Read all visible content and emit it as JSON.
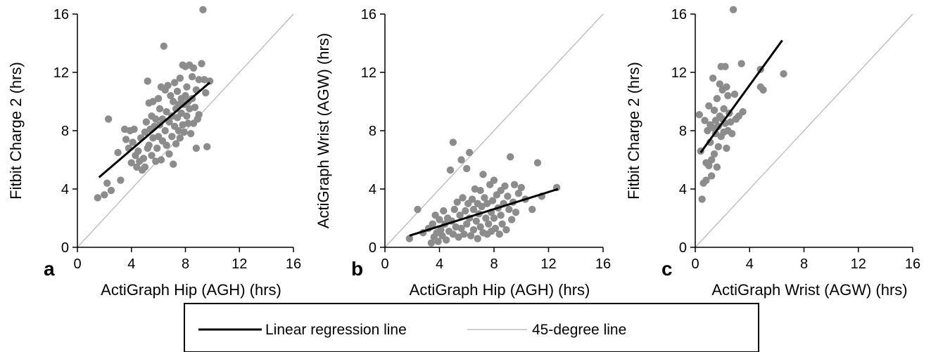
{
  "legend": {
    "items": [
      {
        "label": "Linear regression line",
        "color": "#000000"
      },
      {
        "label": "45-degree line",
        "color": "#bdbdbd"
      }
    ]
  },
  "colors": {
    "points": "#8c8c8c",
    "regression": "#000000",
    "identity": "#bdbdbd"
  },
  "chart_data": [
    {
      "type": "scatter",
      "panel_label": "a",
      "xlabel": "ActiGraph Hip (AGH) (hrs)",
      "ylabel": "Fitbit Charge 2 (hrs)",
      "xlim": [
        0,
        16
      ],
      "ylim": [
        0,
        16
      ],
      "xticks": [
        0,
        4,
        8,
        12,
        16
      ],
      "yticks": [
        0,
        4,
        8,
        12,
        16
      ],
      "grid": false,
      "regression": [
        [
          1.6,
          4.8
        ],
        [
          9.8,
          11.3
        ]
      ],
      "identity": [
        [
          0,
          0
        ],
        [
          16,
          16
        ]
      ],
      "points": [
        [
          1.5,
          3.4
        ],
        [
          2.0,
          3.6
        ],
        [
          2.2,
          4.4
        ],
        [
          2.5,
          3.9
        ],
        [
          2.3,
          8.8
        ],
        [
          3.0,
          6.5
        ],
        [
          3.2,
          4.6
        ],
        [
          3.5,
          8.1
        ],
        [
          3.6,
          7.4
        ],
        [
          3.8,
          6.8
        ],
        [
          3.9,
          8.0
        ],
        [
          4.0,
          5.8
        ],
        [
          4.1,
          7.2
        ],
        [
          4.2,
          8.1
        ],
        [
          4.3,
          6.3
        ],
        [
          4.4,
          5.5
        ],
        [
          4.5,
          6.6
        ],
        [
          4.6,
          5.9
        ],
        [
          4.7,
          7.5
        ],
        [
          4.8,
          5.3
        ],
        [
          4.9,
          6.1
        ],
        [
          5.0,
          7.9
        ],
        [
          5.0,
          5.5
        ],
        [
          5.1,
          8.6
        ],
        [
          5.2,
          6.8
        ],
        [
          5.2,
          11.4
        ],
        [
          5.3,
          9.9
        ],
        [
          5.3,
          7.0
        ],
        [
          5.4,
          8.1
        ],
        [
          5.5,
          6.3
        ],
        [
          5.5,
          9.0
        ],
        [
          5.6,
          7.5
        ],
        [
          5.6,
          10.0
        ],
        [
          5.7,
          8.3
        ],
        [
          5.8,
          5.9
        ],
        [
          5.8,
          8.8
        ],
        [
          5.9,
          6.8
        ],
        [
          6.0,
          7.6
        ],
        [
          6.0,
          10.2
        ],
        [
          6.1,
          8.4
        ],
        [
          6.1,
          9.5
        ],
        [
          6.2,
          6.0
        ],
        [
          6.2,
          11.0
        ],
        [
          6.3,
          7.3
        ],
        [
          6.3,
          8.8
        ],
        [
          6.4,
          13.8
        ],
        [
          6.5,
          10.8
        ],
        [
          6.5,
          8.0
        ],
        [
          6.6,
          7.0
        ],
        [
          6.6,
          9.3
        ],
        [
          6.7,
          11.1
        ],
        [
          6.8,
          8.6
        ],
        [
          6.8,
          6.4
        ],
        [
          6.9,
          10.4
        ],
        [
          7.0,
          9.0
        ],
        [
          7.0,
          7.6
        ],
        [
          7.1,
          5.7
        ],
        [
          7.1,
          10.0
        ],
        [
          7.2,
          8.3
        ],
        [
          7.2,
          11.3
        ],
        [
          7.3,
          9.5
        ],
        [
          7.3,
          7.1
        ],
        [
          7.4,
          8.9
        ],
        [
          7.4,
          10.7
        ],
        [
          7.5,
          9.8
        ],
        [
          7.5,
          8.0
        ],
        [
          7.6,
          7.5
        ],
        [
          7.6,
          11.6
        ],
        [
          7.7,
          9.2
        ],
        [
          7.7,
          10.2
        ],
        [
          7.8,
          8.4
        ],
        [
          7.8,
          12.5
        ],
        [
          7.9,
          9.8
        ],
        [
          7.9,
          7.9
        ],
        [
          8.0,
          10.4
        ],
        [
          8.0,
          12.4
        ],
        [
          8.1,
          9.0
        ],
        [
          8.1,
          11.0
        ],
        [
          8.2,
          8.5
        ],
        [
          8.2,
          10.0
        ],
        [
          8.3,
          12.5
        ],
        [
          8.3,
          9.5
        ],
        [
          8.4,
          7.8
        ],
        [
          8.5,
          10.2
        ],
        [
          8.5,
          11.7
        ],
        [
          8.6,
          8.5
        ],
        [
          8.6,
          12.3
        ],
        [
          8.7,
          9.6
        ],
        [
          8.8,
          10.8
        ],
        [
          8.8,
          6.8
        ],
        [
          8.9,
          8.8
        ],
        [
          9.0,
          11.5
        ],
        [
          9.0,
          9.1
        ],
        [
          9.2,
          12.6
        ],
        [
          9.3,
          16.3
        ],
        [
          9.4,
          11.5
        ],
        [
          9.5,
          10.6
        ],
        [
          9.6,
          6.9
        ],
        [
          9.8,
          11.4
        ]
      ]
    },
    {
      "type": "scatter",
      "panel_label": "b",
      "xlabel": "ActiGraph Hip (AGH) (hrs)",
      "ylabel": "ActiGraph Wrist (AGW) (hrs)",
      "xlim": [
        0,
        16
      ],
      "ylim": [
        0,
        16
      ],
      "xticks": [
        0,
        4,
        8,
        12,
        16
      ],
      "yticks": [
        0,
        4,
        8,
        12,
        16
      ],
      "grid": false,
      "regression": [
        [
          1.8,
          0.8
        ],
        [
          12.7,
          4.0
        ]
      ],
      "identity": [
        [
          0,
          0
        ],
        [
          16,
          16
        ]
      ],
      "points": [
        [
          1.8,
          0.6
        ],
        [
          2.4,
          2.6
        ],
        [
          2.8,
          1.0
        ],
        [
          3.2,
          1.3
        ],
        [
          3.4,
          0.3
        ],
        [
          3.5,
          1.6
        ],
        [
          3.6,
          0.7
        ],
        [
          3.7,
          2.2
        ],
        [
          3.8,
          1.0
        ],
        [
          3.9,
          0.4
        ],
        [
          4.0,
          1.9
        ],
        [
          4.1,
          1.2
        ],
        [
          4.2,
          0.8
        ],
        [
          4.3,
          2.5
        ],
        [
          4.4,
          1.6
        ],
        [
          4.5,
          0.5
        ],
        [
          4.6,
          2.0
        ],
        [
          4.7,
          1.1
        ],
        [
          4.8,
          5.3
        ],
        [
          4.9,
          1.8
        ],
        [
          5.0,
          7.2
        ],
        [
          5.0,
          0.9
        ],
        [
          5.1,
          2.6
        ],
        [
          5.2,
          1.4
        ],
        [
          5.3,
          3.1
        ],
        [
          5.4,
          0.7
        ],
        [
          5.5,
          2.2
        ],
        [
          5.6,
          1.3
        ],
        [
          5.6,
          6.0
        ],
        [
          5.7,
          3.4
        ],
        [
          5.8,
          0.9
        ],
        [
          5.9,
          2.5
        ],
        [
          6.0,
          5.4
        ],
        [
          6.0,
          1.6
        ],
        [
          6.1,
          3.0
        ],
        [
          6.2,
          6.5
        ],
        [
          6.2,
          2.0
        ],
        [
          6.3,
          0.8
        ],
        [
          6.4,
          3.3
        ],
        [
          6.5,
          1.2
        ],
        [
          6.5,
          2.6
        ],
        [
          6.6,
          4.0
        ],
        [
          6.7,
          1.8
        ],
        [
          6.8,
          3.0
        ],
        [
          6.8,
          0.6
        ],
        [
          6.9,
          2.3
        ],
        [
          7.0,
          3.9
        ],
        [
          7.0,
          1.4
        ],
        [
          7.1,
          2.8
        ],
        [
          7.2,
          5.0
        ],
        [
          7.2,
          1.0
        ],
        [
          7.3,
          3.4
        ],
        [
          7.4,
          2.0
        ],
        [
          7.5,
          0.9
        ],
        [
          7.5,
          3.0
        ],
        [
          7.6,
          1.6
        ],
        [
          7.7,
          4.3
        ],
        [
          7.8,
          2.4
        ],
        [
          7.8,
          1.1
        ],
        [
          7.9,
          3.2
        ],
        [
          8.0,
          4.6
        ],
        [
          8.0,
          2.0
        ],
        [
          8.1,
          1.3
        ],
        [
          8.2,
          3.6
        ],
        [
          8.3,
          2.7
        ],
        [
          8.4,
          0.9
        ],
        [
          8.5,
          3.9
        ],
        [
          8.5,
          2.2
        ],
        [
          8.6,
          1.6
        ],
        [
          8.7,
          3.0
        ],
        [
          8.8,
          4.2
        ],
        [
          8.9,
          1.2
        ],
        [
          9.0,
          3.5
        ],
        [
          9.1,
          2.6
        ],
        [
          9.2,
          6.2
        ],
        [
          9.3,
          1.9
        ],
        [
          9.4,
          3.1
        ],
        [
          9.5,
          4.3
        ],
        [
          9.6,
          2.4
        ],
        [
          9.8,
          3.7
        ],
        [
          10.0,
          4.1
        ],
        [
          10.3,
          3.3
        ],
        [
          10.8,
          2.6
        ],
        [
          11.2,
          5.8
        ],
        [
          11.5,
          3.5
        ],
        [
          12.6,
          4.1
        ]
      ]
    },
    {
      "type": "scatter",
      "panel_label": "c",
      "xlabel": "ActiGraph Wrist (AGW) (hrs)",
      "ylabel": "Fitbit Charge 2 (hrs)",
      "xlim": [
        0,
        16
      ],
      "ylim": [
        0,
        16
      ],
      "xticks": [
        0,
        4,
        8,
        12,
        16
      ],
      "yticks": [
        0,
        4,
        8,
        12,
        16
      ],
      "grid": false,
      "regression": [
        [
          0.4,
          6.5
        ],
        [
          6.4,
          14.2
        ]
      ],
      "identity": [
        [
          0,
          0
        ],
        [
          16,
          16
        ]
      ],
      "points": [
        [
          0.3,
          9.1
        ],
        [
          0.4,
          6.6
        ],
        [
          0.5,
          3.3
        ],
        [
          0.6,
          4.4
        ],
        [
          0.7,
          8.7
        ],
        [
          0.8,
          5.8
        ],
        [
          0.8,
          4.6
        ],
        [
          0.9,
          8.0
        ],
        [
          1.0,
          9.7
        ],
        [
          1.0,
          5.6
        ],
        [
          1.1,
          8.4
        ],
        [
          1.1,
          7.2
        ],
        [
          1.2,
          6.0
        ],
        [
          1.2,
          4.9
        ],
        [
          1.3,
          11.6
        ],
        [
          1.3,
          8.2
        ],
        [
          1.4,
          9.4
        ],
        [
          1.4,
          6.4
        ],
        [
          1.5,
          7.8
        ],
        [
          1.5,
          8.7
        ],
        [
          1.6,
          5.5
        ],
        [
          1.6,
          10.2
        ],
        [
          1.7,
          8.3
        ],
        [
          1.7,
          6.9
        ],
        [
          1.8,
          9.0
        ],
        [
          1.8,
          11.2
        ],
        [
          1.9,
          7.6
        ],
        [
          1.9,
          12.4
        ],
        [
          2.0,
          8.8
        ],
        [
          2.0,
          10.8
        ],
        [
          2.1,
          7.9
        ],
        [
          2.1,
          9.5
        ],
        [
          2.2,
          12.4
        ],
        [
          2.2,
          8.5
        ],
        [
          2.3,
          11.0
        ],
        [
          2.3,
          6.8
        ],
        [
          2.4,
          10.4
        ],
        [
          2.4,
          8.0
        ],
        [
          2.5,
          9.2
        ],
        [
          2.6,
          8.6
        ],
        [
          2.7,
          7.8
        ],
        [
          2.8,
          16.3
        ],
        [
          2.9,
          10.5
        ],
        [
          3.0,
          8.8
        ],
        [
          3.2,
          9.0
        ],
        [
          3.4,
          12.6
        ],
        [
          3.5,
          9.3
        ],
        [
          4.8,
          12.2
        ],
        [
          4.8,
          11.0
        ],
        [
          5.0,
          10.8
        ],
        [
          6.5,
          11.9
        ]
      ]
    }
  ]
}
